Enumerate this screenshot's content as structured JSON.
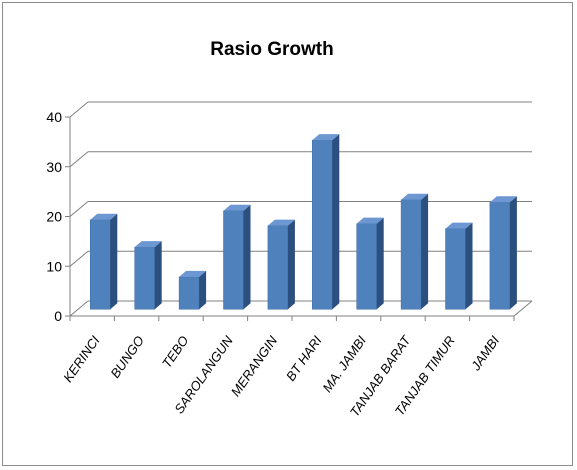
{
  "chart_data": {
    "type": "bar",
    "title": "Rasio Growth",
    "xlabel": "",
    "ylabel": "",
    "categories": [
      "KERINCI",
      "BUNGO",
      "TEBO",
      "SAROLANGUN",
      "MERANGIN",
      "BT HARI",
      "MA. JAMBI",
      "TANJAB BARAT",
      "TANJAB TIMUR",
      "JAMBI"
    ],
    "values": [
      18,
      12.5,
      6.5,
      19.8,
      16.8,
      34,
      17.2,
      22,
      16.2,
      21.5
    ],
    "ylim": [
      0,
      40
    ],
    "yticks": [
      0,
      10,
      20,
      30,
      40
    ],
    "grid": true,
    "legend": "none",
    "bar_color": "#4f81bd",
    "bar_side_color": "#2b4f7e",
    "bar_top_color": "#6c97d2"
  }
}
